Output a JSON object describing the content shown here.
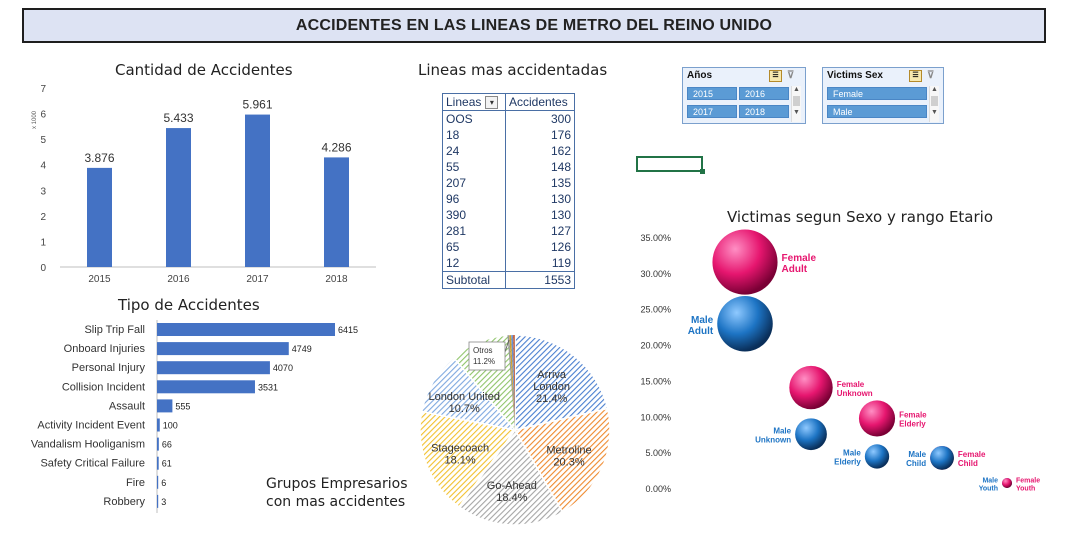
{
  "banner": {
    "title": "ACCIDENTES EN LAS LINEAS DE METRO DEL REINO UNIDO"
  },
  "colors": {
    "bar": "#4472c4",
    "female": "#e6166f",
    "male": "#1d74c4",
    "table": "#1f3864"
  },
  "chart_data": [
    {
      "id": "cantidad",
      "type": "bar",
      "title": "Cantidad de Accidentes",
      "unit_note": "x 1000",
      "categories": [
        "2015",
        "2016",
        "2017",
        "2018"
      ],
      "values": [
        3.876,
        5.433,
        5.961,
        4.286
      ],
      "value_labels": [
        "3.876",
        "5.433",
        "5.961",
        "4.286"
      ],
      "yticks": [
        "0",
        "1",
        "2",
        "3",
        "4",
        "5",
        "6",
        "7"
      ],
      "ylim": [
        0,
        7
      ],
      "grid": false
    },
    {
      "id": "tipo",
      "type": "bar",
      "orientation": "horizontal",
      "title": "Tipo de Accidentes",
      "categories": [
        "Slip Trip Fall",
        "Onboard Injuries",
        "Personal Injury",
        "Collision Incident",
        "Assault",
        "Activity Incident Event",
        "Vandalism Hooliganism",
        "Safety Critical Failure",
        "Fire",
        "Robbery"
      ],
      "values": [
        6415,
        4749,
        4070,
        3531,
        555,
        100,
        66,
        61,
        6,
        3
      ],
      "value_labels": [
        "6415",
        "4749",
        "4070",
        "3531",
        "555",
        "100",
        "66",
        "61",
        "6",
        "3"
      ]
    },
    {
      "id": "grupos",
      "type": "pie",
      "title_lines": [
        "Grupos Empresarios",
        "con mas accidentes"
      ],
      "slices": [
        {
          "label": "Arriva London",
          "pct": 21.4,
          "pct_label": "21.4%",
          "color": "#4a7fd0"
        },
        {
          "label": "Metroline",
          "pct": 20.3,
          "pct_label": "20.3%",
          "color": "#ef8a2e"
        },
        {
          "label": "Go-Ahead",
          "pct": 18.4,
          "pct_label": "18.4%",
          "color": "#a5a5a5"
        },
        {
          "label": "Stagecoach",
          "pct": 18.1,
          "pct_label": "18.1%",
          "color": "#f2c12e"
        },
        {
          "label": "London United",
          "pct": 10.7,
          "pct_label": "10.7%",
          "color": "#7fa9e0"
        },
        {
          "label": "Otros",
          "pct": 11.2,
          "pct_label": "11.2%",
          "color": "#8fc46a"
        }
      ]
    },
    {
      "id": "victimas",
      "type": "scatter",
      "title": "Victimas segun Sexo y rango Etario",
      "yticks": [
        "0.00%",
        "5.00%",
        "10.00%",
        "15.00%",
        "20.00%",
        "25.00%",
        "30.00%",
        "35.00%"
      ],
      "ylim": [
        0,
        35
      ],
      "points": [
        {
          "label": "Female Adult",
          "line1": "Female",
          "line2": "Adult",
          "sex": "female",
          "x": 1,
          "y": 31.5
        },
        {
          "label": "Male Adult",
          "line1": "Male",
          "line2": "Adult",
          "sex": "male",
          "x": 1,
          "y": 22.9
        },
        {
          "label": "Female Unknown",
          "line1": "Female",
          "line2": "Unknown",
          "sex": "female",
          "x": 2,
          "y": 14.0
        },
        {
          "label": "Female Elderly",
          "line1": "Female",
          "line2": "Elderly",
          "sex": "female",
          "x": 3,
          "y": 9.7
        },
        {
          "label": "Male Unknown",
          "line1": "Male",
          "line2": "Unknown",
          "sex": "male",
          "x": 2,
          "y": 7.5
        },
        {
          "label": "Male Elderly",
          "line1": "Male",
          "line2": "Elderly",
          "sex": "male",
          "x": 3,
          "y": 4.4
        },
        {
          "label": "Female Child",
          "line1": "Female",
          "line2": "Child",
          "sex": "female",
          "x": 4,
          "y": 4.2
        },
        {
          "label": "Male Youth",
          "line1": "Male",
          "line2": "Youth",
          "sex": "male",
          "x": 5,
          "y": 0.7
        },
        {
          "label": "Female Youth",
          "line1": "Female",
          "line2": "Youth",
          "sex": "female",
          "x": 5,
          "y": 0.7
        },
        {
          "label": "Male Child",
          "line1": "Male",
          "line2": "Child",
          "sex": "male",
          "x": 4,
          "y": 4.2
        }
      ]
    }
  ],
  "lineas_table": {
    "title": "Lineas mas accidentadas",
    "headers": [
      "Lineas",
      "Accidentes"
    ],
    "rows": [
      [
        "OOS",
        "300"
      ],
      [
        "18",
        "176"
      ],
      [
        "24",
        "162"
      ],
      [
        "55",
        "148"
      ],
      [
        "207",
        "135"
      ],
      [
        "96",
        "130"
      ],
      [
        "390",
        "130"
      ],
      [
        "281",
        "127"
      ],
      [
        "65",
        "126"
      ],
      [
        "12",
        "119"
      ]
    ],
    "subtotal": [
      "Subtotal",
      "1553"
    ]
  },
  "slicers": {
    "anos": {
      "title": "Años",
      "items": [
        "2015",
        "2016",
        "2017",
        "2018"
      ]
    },
    "sexo": {
      "title": "Victims Sex",
      "items": [
        "Female",
        "Male"
      ]
    }
  }
}
